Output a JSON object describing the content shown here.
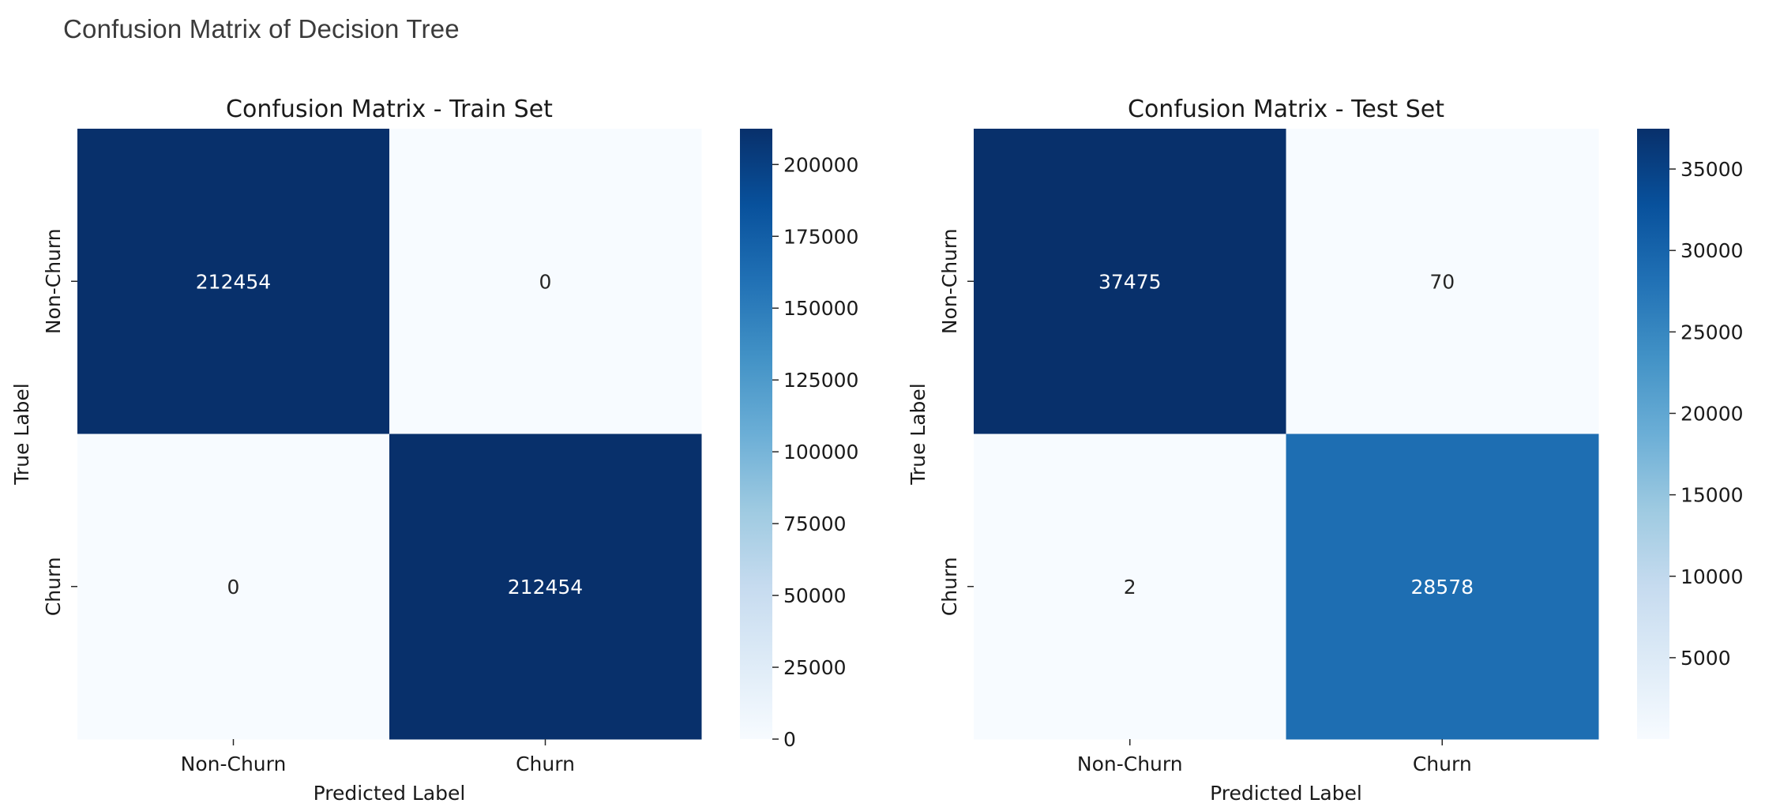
{
  "page": {
    "title": "Confusion Matrix of Decision Tree"
  },
  "chart_data": [
    {
      "type": "heatmap",
      "title": "Confusion Matrix - Train Set",
      "xlabel": "Predicted Label",
      "ylabel": "True Label",
      "x_categories": [
        "Non-Churn",
        "Churn"
      ],
      "y_categories": [
        "Non-Churn",
        "Churn"
      ],
      "values": [
        [
          212454,
          0
        ],
        [
          0,
          212454
        ]
      ],
      "cell_labels": [
        [
          "212454",
          "0"
        ],
        [
          "0",
          "212454"
        ]
      ],
      "colormap": "Blues",
      "colorbar": {
        "min": 0,
        "max": 212454,
        "ticks": [
          0,
          25000,
          50000,
          75000,
          100000,
          125000,
          150000,
          175000,
          200000
        ],
        "tick_labels": [
          "0",
          "25000",
          "50000",
          "75000",
          "100000",
          "125000",
          "150000",
          "175000",
          "200000"
        ]
      }
    },
    {
      "type": "heatmap",
      "title": "Confusion Matrix - Test Set",
      "xlabel": "Predicted Label",
      "ylabel": "True Label",
      "x_categories": [
        "Non-Churn",
        "Churn"
      ],
      "y_categories": [
        "Non-Churn",
        "Churn"
      ],
      "values": [
        [
          37475,
          70
        ],
        [
          2,
          28578
        ]
      ],
      "cell_labels": [
        [
          "37475",
          "70"
        ],
        [
          "2",
          "28578"
        ]
      ],
      "colormap": "Blues",
      "colorbar": {
        "min": 2,
        "max": 37475,
        "ticks": [
          5000,
          10000,
          15000,
          20000,
          25000,
          30000,
          35000
        ],
        "tick_labels": [
          "5000",
          "10000",
          "15000",
          "20000",
          "25000",
          "30000",
          "35000"
        ]
      }
    }
  ]
}
